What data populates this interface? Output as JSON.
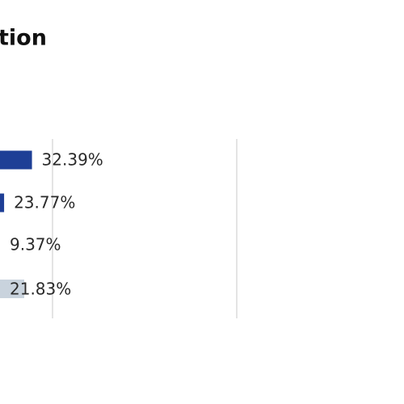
{
  "chart_data": {
    "type": "bar",
    "orientation": "horizontal",
    "title": "tion",
    "values": [
      32.39,
      23.77,
      9.37,
      21.83
    ],
    "value_labels": [
      "32.39%",
      "23.77%",
      "9.37%",
      "21.83%"
    ],
    "color": "#1e3f96",
    "xlim": [
      0,
      100
    ]
  }
}
